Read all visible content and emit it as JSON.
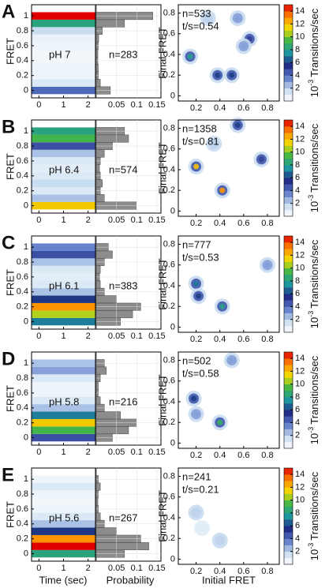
{
  "chart_data": {
    "type": "smfret-panels",
    "fret_bins": [
      0,
      0.1,
      0.2,
      0.3,
      0.4,
      0.5,
      0.6,
      0.7,
      0.8,
      0.9,
      1.0
    ],
    "contour": {
      "ylabel": "FRET",
      "xlabel": "Time (sec)",
      "xlim": [
        -0.3,
        2.3
      ],
      "xticks": [
        0,
        1,
        2
      ],
      "ylim": [
        -0.1,
        1.15
      ],
      "yticks": [
        0,
        0.2,
        0.4,
        0.6,
        0.8,
        1
      ]
    },
    "hist": {
      "xlabel": "Probability",
      "xlim": [
        0,
        0.16
      ],
      "xticks": [
        0,
        0.05,
        0.1,
        0.15
      ],
      "color": "#8c8c8c"
    },
    "tdp": {
      "xlabel": "Initial FRET",
      "ylabel": "Final FRET",
      "xlim": [
        0.05,
        0.9
      ],
      "xticks": [
        0.2,
        0.4,
        0.6,
        0.8
      ],
      "ylim": [
        -0.05,
        0.88
      ],
      "yticks": [
        0,
        0.2,
        0.4,
        0.6,
        0.8
      ]
    },
    "colorbar": {
      "clim": [
        0,
        15
      ],
      "cticks": [
        2,
        4,
        6,
        8,
        10,
        12,
        14
      ],
      "base": "10",
      "exponent": "-3",
      "text": "Transitions/sec"
    },
    "panels": [
      {
        "label": "A",
        "ph": "pH 7",
        "n_text": "n=283",
        "tdp_n": "n=533",
        "tdp_rate": "t/s=0.54",
        "hist": [
          0.035,
          0.01,
          0.005,
          0.005,
          0.004,
          0.004,
          0.005,
          0.006,
          0.015,
          0.07,
          0.14
        ],
        "peaks": {
          "x": [
            0.15,
            0.38,
            0.5,
            0.65,
            0.6,
            0.55,
            0.3
          ],
          "y": [
            0.38,
            0.2,
            0.2,
            0.55,
            0.48,
            0.75,
            0.75
          ],
          "level": [
            8,
            6,
            6,
            5,
            3,
            3,
            2
          ]
        }
      },
      {
        "label": "B",
        "ph": "pH 6.4",
        "n_text": "n=574",
        "tdp_n": "n=1358",
        "tdp_rate": "t/s=0.81",
        "hist": [
          0.1,
          0.02,
          0.01,
          0.015,
          0.01,
          0.008,
          0.01,
          0.02,
          0.04,
          0.08,
          0.07
        ],
        "peaks": {
          "x": [
            0.2,
            0.42,
            0.55,
            0.75,
            0.35
          ],
          "y": [
            0.43,
            0.2,
            0.83,
            0.5,
            0.65
          ],
          "level": [
            12,
            13,
            6,
            5,
            2
          ]
        }
      },
      {
        "label": "C",
        "ph": "pH 6.1",
        "n_text": "n=383",
        "tdp_n": "n=777",
        "tdp_rate": "t/s=0.53",
        "hist": [
          0.06,
          0.09,
          0.11,
          0.05,
          0.02,
          0.01,
          0.008,
          0.01,
          0.02,
          0.04,
          0.03
        ],
        "peaks": {
          "x": [
            0.2,
            0.22,
            0.42,
            0.8
          ],
          "y": [
            0.42,
            0.3,
            0.2,
            0.6
          ],
          "level": [
            7,
            6,
            8,
            3
          ]
        }
      },
      {
        "label": "D",
        "ph": "pH 5.8",
        "n_text": "n=216",
        "tdp_n": "n=502",
        "tdp_rate": "t/s=0.58",
        "hist": [
          0.04,
          0.08,
          0.1,
          0.06,
          0.02,
          0.01,
          0.005,
          0.005,
          0.01,
          0.025,
          0.02
        ],
        "peaks": {
          "x": [
            0.18,
            0.4,
            0.5,
            0.2
          ],
          "y": [
            0.43,
            0.2,
            0.8,
            0.28
          ],
          "level": [
            6,
            9,
            3,
            3
          ]
        }
      },
      {
        "label": "E",
        "ph": "pH 5.6",
        "n_text": "n=267",
        "tdp_n": "n=241",
        "tdp_rate": "t/s=0.21",
        "hist": [
          0.07,
          0.13,
          0.11,
          0.05,
          0.02,
          0.01,
          0.005,
          0.004,
          0.005,
          0.01,
          0.005
        ],
        "peaks": {
          "x": [
            0.2,
            0.4,
            0.25
          ],
          "y": [
            0.45,
            0.18,
            0.3
          ],
          "level": [
            2,
            2,
            1
          ]
        }
      }
    ]
  }
}
